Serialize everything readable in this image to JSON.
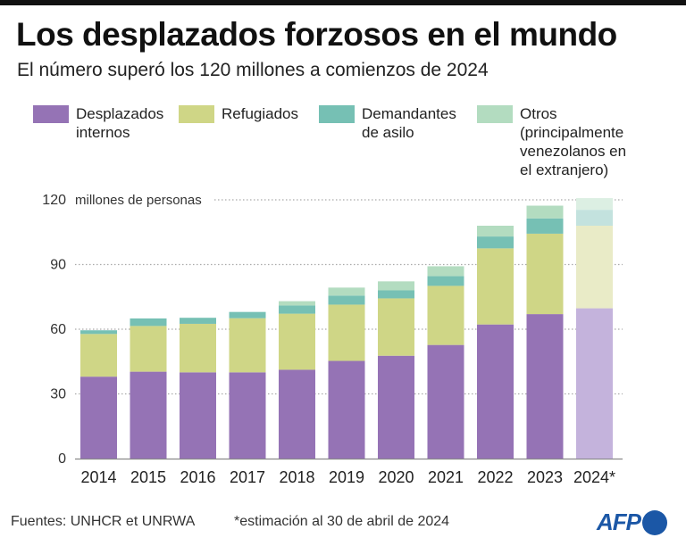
{
  "header": {
    "title": "Los desplazados forzosos en el mundo",
    "subtitle": "El número superó los 120 millones a comienzos de 2024"
  },
  "legend": [
    {
      "label": "Desplazados\ninternos",
      "color": "#9573b5"
    },
    {
      "label": "Refugiados",
      "color": "#cfd686"
    },
    {
      "label": "Demandantes\nde asilo",
      "color": "#76c0b4"
    },
    {
      "label": "Otros\n(principalmente\nvenezolanos en\nel extranjero)",
      "color": "#b3dcc0"
    }
  ],
  "footer": {
    "sources": "Fuentes: UNHCR et UNRWA",
    "note": "*estimación al 30 de abril de 2024",
    "logo": "AFP"
  },
  "chart_data": {
    "type": "bar",
    "stacked": true,
    "title": "Los desplazados forzosos en el mundo",
    "subtitle": "El número superó los 120 millones a comienzos de 2024",
    "ylabel": "millones de personas",
    "xlabel": "",
    "ylim": [
      0,
      120
    ],
    "yticks": [
      0,
      30,
      60,
      90,
      120
    ],
    "grid": true,
    "legend_position": "top",
    "categories": [
      "2014",
      "2015",
      "2016",
      "2017",
      "2018",
      "2019",
      "2020",
      "2021",
      "2022",
      "2023",
      "2024*"
    ],
    "estimated_categories": [
      "2024*"
    ],
    "series": [
      {
        "name": "Desplazados internos",
        "color": "#9573b5",
        "estimate_color": "#c4b3dc",
        "values": [
          38.0,
          40.3,
          40.0,
          40.0,
          41.2,
          45.3,
          47.7,
          52.7,
          62.2,
          67.0,
          69.7
        ]
      },
      {
        "name": "Refugiados",
        "color": "#cfd686",
        "estimate_color": "#e9ebc7",
        "values": [
          19.8,
          21.2,
          22.5,
          25.1,
          26.0,
          26.1,
          26.6,
          27.4,
          35.3,
          37.3,
          38.3
        ]
      },
      {
        "name": "Demandantes de asilo",
        "color": "#76c0b4",
        "estimate_color": "#c3e2de",
        "values": [
          1.7,
          3.5,
          2.8,
          2.9,
          3.8,
          4.2,
          3.7,
          4.5,
          5.5,
          7.1,
          7.4
        ]
      },
      {
        "name": "Otros (principalmente venezolanos en el extranjero)",
        "color": "#b3dcc0",
        "estimate_color": "#dcefe3",
        "values": [
          0,
          0,
          0,
          0,
          2.0,
          3.7,
          4.2,
          4.6,
          5.0,
          5.9,
          5.4
        ]
      }
    ]
  }
}
